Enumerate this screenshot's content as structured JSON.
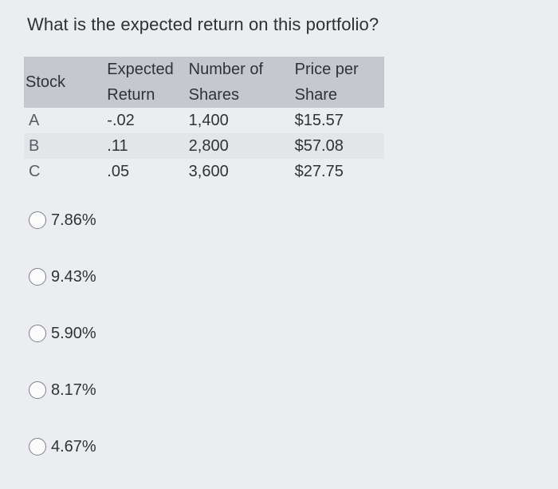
{
  "question": "What is the expected return on this portfolio?",
  "table": {
    "headers": {
      "stock": [
        "Stock"
      ],
      "expected_return": [
        "Expected",
        "Return"
      ],
      "number_of_shares": [
        "Number of",
        "Shares"
      ],
      "price_per_share": [
        "Price per",
        "Share"
      ]
    },
    "rows": [
      {
        "stock": "A",
        "expected_return": "-.02",
        "shares": "1,400",
        "price": "$15.57"
      },
      {
        "stock": "B",
        "expected_return": ".11",
        "shares": "2,800",
        "price": "$57.08"
      },
      {
        "stock": "C",
        "expected_return": ".05",
        "shares": "3,600",
        "price": "$27.75"
      }
    ]
  },
  "options": [
    "7.86%",
    "9.43%",
    "5.90%",
    "8.17%",
    "4.67%"
  ]
}
